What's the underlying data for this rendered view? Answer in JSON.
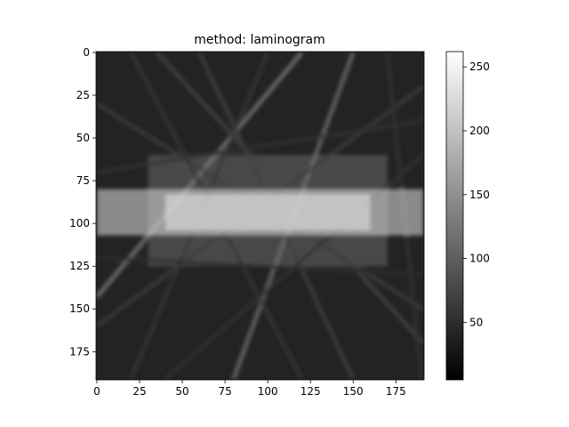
{
  "chart_data": {
    "type": "heatmap",
    "title": "method: laminogram",
    "xlabel": "",
    "ylabel": "",
    "image_shape": [
      192,
      192
    ],
    "xlim": [
      -0.5,
      191.5
    ],
    "ylim": [
      191.5,
      -0.5
    ],
    "x_ticks": [
      0,
      25,
      50,
      75,
      100,
      125,
      150,
      175
    ],
    "y_ticks": [
      0,
      25,
      50,
      75,
      100,
      125,
      150,
      175
    ],
    "colormap": "gray",
    "colorbar": {
      "range": [
        5,
        262
      ],
      "ticks": [
        50,
        100,
        150,
        200,
        250
      ]
    },
    "features": {
      "background_level": 40,
      "bright_band_rows": [
        80,
        107
      ],
      "bright_band_cols": [
        0,
        191
      ],
      "bright_band_core_cols": [
        40,
        160
      ],
      "bright_band_level": 230,
      "mid_region_rows": [
        60,
        125
      ],
      "mid_region_cols": [
        30,
        170
      ],
      "mid_region_level": 110,
      "streaks": [
        {
          "x0": 0,
          "y0": 143,
          "x1": 120,
          "y1": 0,
          "level": 130
        },
        {
          "x0": 150,
          "y0": 0,
          "x1": 80,
          "y1": 191,
          "level": 120
        },
        {
          "x0": 35,
          "y0": 0,
          "x1": 191,
          "y1": 170,
          "level": 75
        },
        {
          "x0": 60,
          "y0": 0,
          "x1": 150,
          "y1": 191,
          "level": 70
        },
        {
          "x0": 0,
          "y0": 30,
          "x1": 191,
          "y1": 150,
          "level": 65
        },
        {
          "x0": 191,
          "y0": 20,
          "x1": 0,
          "y1": 160,
          "level": 65
        },
        {
          "x0": 100,
          "y0": 0,
          "x1": 20,
          "y1": 191,
          "level": 60
        },
        {
          "x0": 20,
          "y0": 0,
          "x1": 120,
          "y1": 191,
          "level": 60
        },
        {
          "x0": 191,
          "y0": 60,
          "x1": 40,
          "y1": 191,
          "level": 55
        },
        {
          "x0": 170,
          "y0": 0,
          "x1": 190,
          "y1": 191,
          "level": 55
        },
        {
          "x0": 0,
          "y0": 70,
          "x1": 191,
          "y1": 40,
          "level": 55
        },
        {
          "x0": 0,
          "y0": 120,
          "x1": 191,
          "y1": 130,
          "level": 50
        }
      ]
    }
  }
}
